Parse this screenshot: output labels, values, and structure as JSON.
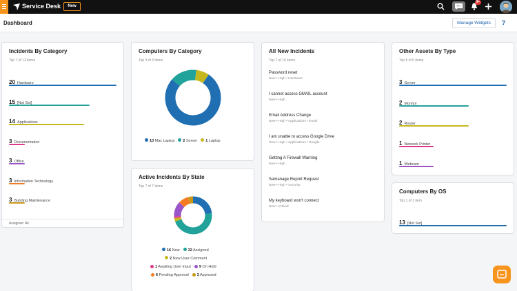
{
  "topbar": {
    "app_name": "Service Desk",
    "new_label": "New",
    "notification_count": "9+"
  },
  "header": {
    "title": "Dashboard",
    "manage_widgets_label": "Manage Widgets",
    "help_label": "?"
  },
  "widgets": {
    "incidents_by_category": {
      "title": "Incidents By Category",
      "subtitle": "Top 7 of 13 items",
      "footer": "Assignee: All",
      "items": [
        {
          "value": "20",
          "label": "Hardware",
          "fraction": 1.0,
          "color": "#1f6fb2"
        },
        {
          "value": "15",
          "label": "[Not Set]",
          "fraction": 0.75,
          "color": "#21a29a"
        },
        {
          "value": "14",
          "label": "Applications",
          "fraction": 0.7,
          "color": "#c5b81f"
        },
        {
          "value": "3",
          "label": "Documentation",
          "fraction": 0.15,
          "color": "#e0368c"
        },
        {
          "value": "3",
          "label": "Office",
          "fraction": 0.15,
          "color": "#9a55c9"
        },
        {
          "value": "3",
          "label": "Information Technology",
          "fraction": 0.15,
          "color": "#f47b20"
        },
        {
          "value": "3",
          "label": "Building Maintenance",
          "fraction": 0.15,
          "color": "#c99618"
        }
      ]
    },
    "computers_by_category": {
      "title": "Computers By Category",
      "subtitle": "Top 3 of 3 items",
      "legend": [
        {
          "value": "10",
          "label": "Mac Laptop",
          "color": "#1f6fb2"
        },
        {
          "value": "2",
          "label": "Server",
          "color": "#21a29a"
        },
        {
          "value": "1",
          "label": "Laptop",
          "color": "#c5b81f"
        }
      ]
    },
    "active_incidents_by_state": {
      "title": "Active Incidents By State",
      "subtitle": "Top 7 of 7 items",
      "legend": [
        {
          "value": "16",
          "label": "New",
          "color": "#1f6fb2"
        },
        {
          "value": "32",
          "label": "Assigned",
          "color": "#21a29a"
        },
        {
          "value": "2",
          "label": "New User Comment",
          "color": "#c5b81f"
        },
        {
          "value": "1",
          "label": "Awaiting User Input",
          "color": "#e0368c"
        },
        {
          "value": "9",
          "label": "On Hold",
          "color": "#9a55c9"
        },
        {
          "value": "6",
          "label": "Pending Approval",
          "color": "#f47b20"
        },
        {
          "value": "3",
          "label": "Approved",
          "color": "#c99618"
        }
      ]
    },
    "all_new_incidents": {
      "title": "All New Incidents",
      "subtitle": "Top 7 of 16 items",
      "items": [
        {
          "title": "Password reset",
          "meta": "New  •  High  •  Hardware"
        },
        {
          "title": "I cannot access GMAIL account",
          "meta": "New  •  High"
        },
        {
          "title": "Email Address Change",
          "meta": "New  •  High  •  Applications  •  Email"
        },
        {
          "title": "I am unable to access Google Drive",
          "meta": "New  •  High  •  Applications  •  Google"
        },
        {
          "title": "Getting A Firewall Warning",
          "meta": "New  •  High"
        },
        {
          "title": "Samanage Report Request",
          "meta": "New  •  High  •  Security"
        },
        {
          "title": "My keyboard won't connect",
          "meta": "New  •  Critical"
        }
      ]
    },
    "other_assets_by_type": {
      "title": "Other Assets By Type",
      "subtitle": "Top 5 of 5 items",
      "items": [
        {
          "value": "3",
          "label": "Server",
          "fraction": 1.0,
          "color": "#1f6fb2"
        },
        {
          "value": "2",
          "label": "Monitor",
          "fraction": 0.65,
          "color": "#21a29a"
        },
        {
          "value": "2",
          "label": "Router",
          "fraction": 0.65,
          "color": "#c5b81f"
        },
        {
          "value": "1",
          "label": "Network Printer",
          "fraction": 0.32,
          "color": "#e0368c"
        },
        {
          "value": "1",
          "label": "Webcam",
          "fraction": 0.32,
          "color": "#9a55c9"
        }
      ]
    },
    "computers_by_os": {
      "title": "Computers By OS",
      "subtitle": "Top 1 of 1 item",
      "items": [
        {
          "value": "13",
          "label": "[Not Set]",
          "fraction": 1.0,
          "color": "#1f6fb2"
        }
      ]
    }
  }
}
